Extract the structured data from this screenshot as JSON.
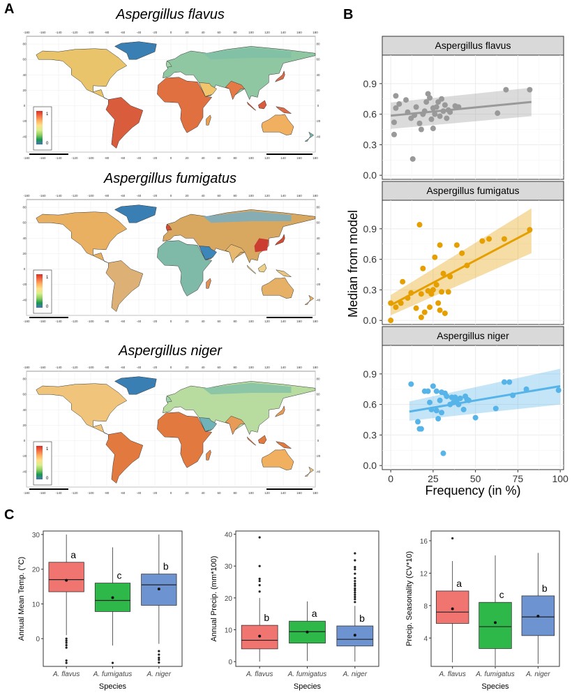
{
  "panel_labels": {
    "a": "A",
    "b": "B",
    "c": "C"
  },
  "maps": [
    {
      "title": "Aspergillus flavus",
      "legend_max": "1",
      "legend_min": "0"
    },
    {
      "title": "Aspergillus fumigatus",
      "legend_max": "1",
      "legend_min": "0"
    },
    {
      "title": "Aspergillus niger",
      "legend_max": "1",
      "legend_min": "0"
    }
  ],
  "map_axis": {
    "lon_ticks": [
      "-180",
      "-160",
      "-140",
      "-120",
      "-100",
      "-80",
      "-60",
      "-40",
      "-20",
      "0",
      "20",
      "40",
      "60",
      "80",
      "100",
      "120",
      "140",
      "160",
      "180"
    ],
    "lat_ticks": [
      "80",
      "60",
      "40",
      "20",
      "0",
      "-20",
      "-40"
    ]
  },
  "colors": {
    "flavus": "#999999",
    "fumigatus": "#E69F00",
    "niger": "#56B4E9",
    "box_flavus": "#F07470",
    "box_fumigatus": "#2EB84A",
    "box_niger": "#6D93D1",
    "strip": "#D9D9D9"
  },
  "chart_data": [
    {
      "type": "scatter",
      "panel": "B",
      "ylabel": "Median from model",
      "xlabel": "Frequency (in %)",
      "xlim": [
        -5,
        102
      ],
      "ylim": [
        -0.04,
        1.18
      ],
      "x_ticks": [
        0,
        25,
        50,
        75,
        100
      ],
      "y_ticks": [
        "0.0",
        "0.3",
        "0.6",
        "0.9"
      ],
      "y_tick_values": [
        0,
        0.3,
        0.6,
        0.9
      ],
      "facets": [
        {
          "name": "Aspergillus flavus",
          "color_key": "flavus",
          "points": [
            [
              2,
              0.4
            ],
            [
              2,
              0.52
            ],
            [
              3,
              0.66
            ],
            [
              3,
              0.78
            ],
            [
              5,
              0.7
            ],
            [
              9,
              0.74
            ],
            [
              10,
              0.62
            ],
            [
              12,
              0.56
            ],
            [
              14,
              0.59
            ],
            [
              15,
              0.67
            ],
            [
              17,
              0.51
            ],
            [
              18,
              0.45
            ],
            [
              19,
              0.6
            ],
            [
              20,
              0.63
            ],
            [
              21,
              0.72
            ],
            [
              22,
              0.8
            ],
            [
              23,
              0.76
            ],
            [
              24,
              0.55
            ],
            [
              25,
              0.66
            ],
            [
              25,
              0.46
            ],
            [
              26,
              0.6
            ],
            [
              27,
              0.67
            ],
            [
              28,
              0.72
            ],
            [
              29,
              0.58
            ],
            [
              30,
              0.75
            ],
            [
              31,
              0.63
            ],
            [
              32,
              0.69
            ],
            [
              33,
              0.56
            ],
            [
              34,
              0.64
            ],
            [
              35,
              0.62
            ],
            [
              38,
              0.68
            ],
            [
              40,
              0.67
            ],
            [
              13,
              0.16
            ],
            [
              63,
              0.61
            ],
            [
              68,
              0.84
            ],
            [
              82,
              0.84
            ]
          ],
          "fit": {
            "x": [
              0,
              83
            ],
            "y": [
              0.585,
              0.72
            ],
            "lower": [
              0.455,
              0.58
            ],
            "upper": [
              0.715,
              0.86
            ]
          }
        },
        {
          "name": "Aspergillus fumigatus",
          "color_key": "fumigatus",
          "points": [
            [
              0,
              0.0
            ],
            [
              0,
              0.17
            ],
            [
              3,
              0.13
            ],
            [
              6,
              0.17
            ],
            [
              7,
              0.38
            ],
            [
              10,
              0.22
            ],
            [
              12,
              0.27
            ],
            [
              15,
              0.12
            ],
            [
              17,
              0.94
            ],
            [
              18,
              0.26
            ],
            [
              18,
              0.03
            ],
            [
              19,
              0.51
            ],
            [
              20,
              0.08
            ],
            [
              22,
              0.29
            ],
            [
              23,
              0.13
            ],
            [
              24,
              0.26
            ],
            [
              25,
              0.3
            ],
            [
              26,
              0.62
            ],
            [
              27,
              0.35
            ],
            [
              28,
              0.17
            ],
            [
              29,
              0.1
            ],
            [
              29,
              0.74
            ],
            [
              30,
              0.28
            ],
            [
              31,
              0.46
            ],
            [
              32,
              0.07
            ],
            [
              34,
              0.28
            ],
            [
              35,
              0.43
            ],
            [
              39,
              0.74
            ],
            [
              42,
              0.66
            ],
            [
              45,
              0.54
            ],
            [
              54,
              0.78
            ],
            [
              58,
              0.8
            ],
            [
              67,
              0.8
            ],
            [
              82,
              0.89
            ]
          ],
          "fit": {
            "x": [
              0,
              83
            ],
            "y": [
              0.15,
              0.88
            ],
            "lower": [
              0.05,
              0.66
            ],
            "upper": [
              0.25,
              1.1
            ]
          }
        },
        {
          "name": "Aspergillus niger",
          "color_key": "niger",
          "points": [
            [
              12,
              0.8
            ],
            [
              16,
              0.43
            ],
            [
              17,
              0.36
            ],
            [
              18,
              0.36
            ],
            [
              20,
              0.73
            ],
            [
              22,
              0.73
            ],
            [
              23,
              0.62
            ],
            [
              24,
              0.55
            ],
            [
              25,
              0.78
            ],
            [
              27,
              0.54
            ],
            [
              27,
              0.73
            ],
            [
              28,
              0.46
            ],
            [
              29,
              0.64
            ],
            [
              30,
              0.72
            ],
            [
              30,
              0.52
            ],
            [
              31,
              0.12
            ],
            [
              32,
              0.71
            ],
            [
              33,
              0.68
            ],
            [
              35,
              0.6
            ],
            [
              36,
              0.67
            ],
            [
              37,
              0.62
            ],
            [
              38,
              0.67
            ],
            [
              39,
              0.64
            ],
            [
              40,
              0.6
            ],
            [
              41,
              0.66
            ],
            [
              43,
              0.55
            ],
            [
              44,
              0.68
            ],
            [
              45,
              0.65
            ],
            [
              46,
              0.64
            ],
            [
              50,
              0.47
            ],
            [
              62,
              0.56
            ],
            [
              67,
              0.82
            ],
            [
              70,
              0.82
            ],
            [
              72,
              0.69
            ],
            [
              80,
              0.75
            ],
            [
              99,
              0.74
            ]
          ],
          "fit": {
            "x": [
              11,
              100
            ],
            "y": [
              0.53,
              0.78
            ],
            "lower": [
              0.44,
              0.6
            ],
            "upper": [
              0.63,
              0.95
            ]
          }
        }
      ]
    },
    {
      "type": "box",
      "panel": "C",
      "xlabel": "Species",
      "ylabel": "Annual Mean Temp. (°C)",
      "ylim": [
        -8,
        31
      ],
      "y_ticks": [
        0,
        10,
        20,
        30
      ],
      "categories": [
        "A. flavus",
        "A. fumigatus",
        "A. niger"
      ],
      "boxes": [
        {
          "q1": 13.5,
          "median": 17,
          "q3": 22,
          "whisker_low": 1,
          "whisker_high": 30,
          "mean": 16.8,
          "letter": "a",
          "outliers": [
            0,
            -0.6,
            -1.2,
            -1.9,
            -2.6,
            -6.3,
            -7
          ]
        },
        {
          "q1": 7.8,
          "median": 11,
          "q3": 16,
          "whisker_low": -2,
          "whisker_high": 26.3,
          "mean": 11.8,
          "letter": "c",
          "outliers": [
            -7
          ]
        },
        {
          "q1": 9.6,
          "median": 15.5,
          "q3": 18.6,
          "whisker_low": -1.5,
          "whisker_high": 30,
          "mean": 14.3,
          "letter": "b",
          "outliers": [
            -3.6,
            -4.6,
            -5.5,
            -6.1,
            -6.9
          ]
        }
      ]
    },
    {
      "type": "box",
      "panel": "C",
      "xlabel": "Species",
      "ylabel": "Annual Precip. (mm*100)",
      "ylim": [
        -1.5,
        41
      ],
      "y_ticks": [
        0,
        10,
        20,
        30,
        40
      ],
      "categories": [
        "A. flavus",
        "A. fumigatus",
        "A. niger"
      ],
      "boxes": [
        {
          "q1": 4,
          "median": 6.7,
          "q3": 11.4,
          "whisker_low": 0,
          "whisker_high": 20,
          "mean": 8,
          "letter": "b",
          "outliers": [
            22,
            24,
            25.3,
            26,
            30,
            39
          ]
        },
        {
          "q1": 5.8,
          "median": 9.4,
          "q3": 12.7,
          "whisker_low": 0.2,
          "whisker_high": 18.9,
          "mean": 9.3,
          "letter": "a",
          "outliers": []
        },
        {
          "q1": 4.9,
          "median": 7,
          "q3": 11.2,
          "whisker_low": 0,
          "whisker_high": 17.5,
          "mean": 8.3,
          "letter": "b",
          "outliers": [
            18.7,
            19.6,
            20.3,
            21,
            21.7,
            22.4,
            23,
            23.8,
            24.5,
            25.3,
            26.2,
            27.6,
            29,
            29.7,
            31.8,
            34
          ]
        }
      ]
    },
    {
      "type": "box",
      "panel": "C",
      "xlabel": "Species",
      "ylabel": "Precip. Seasonality (CV*10)",
      "ylim": [
        0.5,
        17.2
      ],
      "y_ticks": [
        4,
        8,
        12,
        16
      ],
      "categories": [
        "A. flavus",
        "A. fumigatus",
        "A. niger"
      ],
      "boxes": [
        {
          "q1": 5.8,
          "median": 7.2,
          "q3": 9.8,
          "whisker_low": 1,
          "whisker_high": 13.5,
          "mean": 7.6,
          "letter": "a",
          "outliers": [
            16.3
          ]
        },
        {
          "q1": 2.7,
          "median": 5.4,
          "q3": 8.4,
          "whisker_low": 0.6,
          "whisker_high": 14.2,
          "mean": 5.9,
          "letter": "c",
          "outliers": []
        },
        {
          "q1": 4.3,
          "median": 6.6,
          "q3": 9.2,
          "whisker_low": 0.8,
          "whisker_high": 14.5,
          "mean": 6.7,
          "letter": "b",
          "outliers": []
        }
      ]
    }
  ]
}
